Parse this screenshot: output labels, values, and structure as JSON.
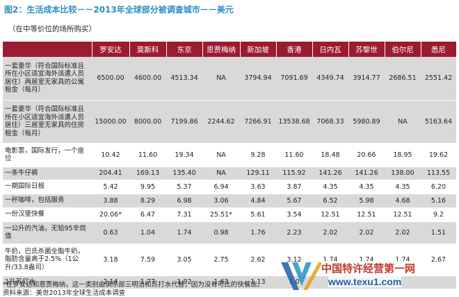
{
  "header": {
    "title": "图2：生活成本比较－－2013年全球部分被调查城市－－美元",
    "subtitle": "（在中等价位的场所购买）"
  },
  "table": {
    "columns": [
      "",
      "罗安达",
      "莫斯科",
      "东京",
      "恩贾梅纳",
      "新加坡",
      "香港",
      "日内瓦",
      "苏黎世",
      "伯尔尼",
      "悉尼"
    ],
    "rows": [
      {
        "label": "一套豪华（符合国际标准且所在小区适宜海外派遣人员居住）两居室无家具的公寓租金（每月）",
        "values": [
          "6500.00",
          "4600.00",
          "4513.34",
          "NA",
          "3794.94",
          "7091.69",
          "4349.74",
          "3914.77",
          "2686.51",
          "2551.42"
        ]
      },
      {
        "label": "一套豪华（符合国际标准且所在小区适宜海外派遣人员居住）三居室无家具的住房租金（每月）",
        "values": [
          "15000.00",
          "8000.00",
          "7199.86",
          "2244.62",
          "7266.91",
          "13538.68",
          "7068.33",
          "5980.89",
          "NA",
          "5163.64"
        ]
      },
      {
        "label": "电影票，国际发行，一个座位",
        "values": [
          "10.42",
          "11.60",
          "19.34",
          "NA",
          "9.28",
          "11.60",
          "18.48",
          "20.66",
          "18.95",
          "19.62"
        ]
      },
      {
        "label": "一条牛仔裤",
        "values": [
          "204.41",
          "169.13",
          "135.40",
          "NA",
          "129.11",
          "115.92",
          "141.26",
          "141.26",
          "138.00",
          "113.55"
        ]
      },
      {
        "label": "一期国际日报",
        "values": [
          "5.42",
          "9.95",
          "5.37",
          "6.94",
          "3.63",
          "3.87",
          "4.35",
          "4.35",
          "4.35",
          "6.20"
        ]
      },
      {
        "label": "一杯咖啡，包括服务",
        "values": [
          "3.88",
          "8.29",
          "6.98",
          "3.06",
          "4.84",
          "5.67",
          "6.52",
          "5.98",
          "4.68",
          "5.16"
        ]
      },
      {
        "label": "一份汉堡快餐",
        "values": [
          "20.06*",
          "6.47",
          "7.31",
          "25.51*",
          "5.61",
          "3.54",
          "12.51",
          "12.51",
          "12.51",
          "9.2"
        ]
      },
      {
        "label": "一公升的汽油，无铅95辛烷值",
        "values": [
          "0.63",
          "1.04",
          "1.74",
          "0.98",
          "1.76",
          "2.23",
          "2.02",
          "2.02",
          "2.02",
          "1.51"
        ]
      },
      {
        "label": "牛奶，巴氏杀菌全脂牛奶，脂肪含量高于2.5%（1公升/33.8盎司）",
        "values": [
          "3.18",
          "7.59",
          "3.05",
          "2.75",
          "2.62",
          "3.12",
          "1.74",
          "1.74",
          "1.74",
          "2.67"
        ]
      },
      {
        "label": "1升苏打水",
        "values": [
          "2.14",
          "1.77",
          "1.92",
          "1.63",
          "1.13",
          "1.0",
          "",
          "",
          "",
          ""
        ]
      }
    ]
  },
  "footer": {
    "footnote": "*在罗安达和恩贾梅纳，这一类别由俱乐部三明治和苏打水代替，因为没有可比的快餐店。",
    "source": "资料来源：美世2013年全球生活成本调查"
  },
  "watermark": {
    "line1": "中国特许经营第一网",
    "line2": "www.texu1.com"
  },
  "colors": {
    "title": "#2a8fc4",
    "header_bg": "#9b1b30",
    "header_text": "#ffffff",
    "row_shade": "#d9d9d9"
  }
}
